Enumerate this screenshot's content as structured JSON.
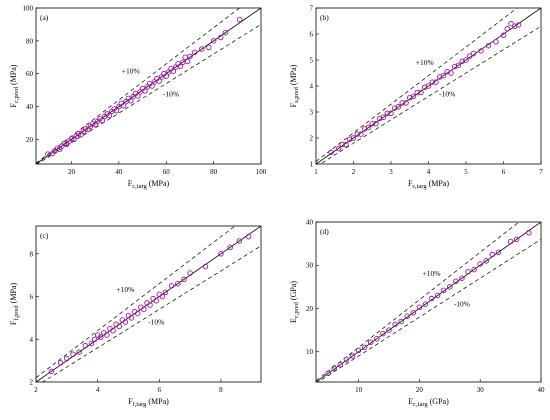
{
  "style": {
    "marker_color": "#a0179e"
  },
  "chart_data": [
    {
      "type": "scatter",
      "panel": "(a)",
      "xlabel_main": "F",
      "xlabel_sub": "c,targ",
      "xlabel_unit": " (MPa)",
      "ylabel_main": "F",
      "ylabel_sub": "c,pred",
      "ylabel_unit": " (MPa)",
      "xlim": [
        5,
        100
      ],
      "ylim": [
        5,
        100
      ],
      "xticks": [
        20,
        40,
        60,
        80,
        100
      ],
      "yticks": [
        20,
        40,
        60,
        80,
        100
      ],
      "band_upper_label": "+10%",
      "band_lower_label": "-10%",
      "band_upper_pos": [
        45,
        60
      ],
      "band_lower_pos": [
        62,
        46
      ],
      "identity_line": true,
      "band_pct": 10,
      "points": [
        [
          10,
          11
        ],
        [
          12,
          11.5
        ],
        [
          13,
          13
        ],
        [
          14,
          14.5
        ],
        [
          15,
          14
        ],
        [
          16,
          16
        ],
        [
          17,
          17.5
        ],
        [
          18,
          17
        ],
        [
          19,
          19
        ],
        [
          20,
          20.5
        ],
        [
          21,
          20
        ],
        [
          22,
          22
        ],
        [
          23,
          23.5
        ],
        [
          24,
          23
        ],
        [
          25,
          25
        ],
        [
          26,
          26.5
        ],
        [
          27,
          26
        ],
        [
          28,
          28
        ],
        [
          29,
          29.5
        ],
        [
          30,
          29
        ],
        [
          31,
          31
        ],
        [
          32,
          32.5
        ],
        [
          33,
          31.5
        ],
        [
          34,
          34
        ],
        [
          35,
          35.5
        ],
        [
          36,
          34.5
        ],
        [
          37,
          37
        ],
        [
          38,
          38.5
        ],
        [
          39,
          37.5
        ],
        [
          40,
          40
        ],
        [
          41,
          42
        ],
        [
          42,
          40.5
        ],
        [
          43,
          43
        ],
        [
          44,
          45
        ],
        [
          45,
          43.5
        ],
        [
          46,
          46
        ],
        [
          47,
          48
        ],
        [
          48,
          46.5
        ],
        [
          49,
          49
        ],
        [
          50,
          51
        ],
        [
          51,
          49.5
        ],
        [
          52,
          52
        ],
        [
          53,
          54
        ],
        [
          54,
          52.5
        ],
        [
          55,
          55
        ],
        [
          56,
          57
        ],
        [
          57,
          55.5
        ],
        [
          58,
          58
        ],
        [
          59,
          60
        ],
        [
          60,
          58.5
        ],
        [
          61,
          61
        ],
        [
          62,
          63
        ],
        [
          63,
          61.5
        ],
        [
          64,
          64
        ],
        [
          65,
          66
        ],
        [
          66,
          64.5
        ],
        [
          67,
          67
        ],
        [
          68,
          70
        ],
        [
          69,
          67.5
        ],
        [
          70,
          70.5
        ],
        [
          72,
          73
        ],
        [
          75,
          75
        ],
        [
          78,
          76
        ],
        [
          80,
          80
        ],
        [
          83,
          82
        ],
        [
          85,
          85
        ],
        [
          91,
          93
        ]
      ]
    },
    {
      "type": "scatter",
      "panel": "(b)",
      "xlabel_main": "F",
      "xlabel_sub": "s,targ",
      "xlabel_unit": " (MPa)",
      "ylabel_main": "F",
      "ylabel_sub": "s,pred",
      "ylabel_unit": " (MPa)",
      "xlim": [
        1,
        7
      ],
      "ylim": [
        1,
        7
      ],
      "xticks": [
        1,
        2,
        3,
        4,
        5,
        6,
        7
      ],
      "yticks": [
        1,
        2,
        3,
        4,
        5,
        6,
        7
      ],
      "band_upper_label": "+10%",
      "band_lower_label": "-10%",
      "band_upper_pos": [
        3.9,
        4.8
      ],
      "band_lower_pos": [
        4.5,
        3.6
      ],
      "identity_line": true,
      "band_pct": 10,
      "points": [
        [
          1.4,
          1.45
        ],
        [
          1.6,
          1.6
        ],
        [
          1.7,
          1.75
        ],
        [
          1.8,
          1.75
        ],
        [
          1.9,
          1.95
        ],
        [
          2.0,
          2.0
        ],
        [
          2.1,
          2.15
        ],
        [
          2.2,
          2.15
        ],
        [
          2.3,
          2.35
        ],
        [
          2.4,
          2.4
        ],
        [
          2.5,
          2.55
        ],
        [
          2.6,
          2.55
        ],
        [
          2.7,
          2.75
        ],
        [
          2.8,
          2.8
        ],
        [
          2.9,
          2.95
        ],
        [
          3.0,
          2.95
        ],
        [
          3.1,
          3.15
        ],
        [
          3.2,
          3.2
        ],
        [
          3.3,
          3.35
        ],
        [
          3.4,
          3.35
        ],
        [
          3.5,
          3.55
        ],
        [
          3.6,
          3.6
        ],
        [
          3.7,
          3.75
        ],
        [
          3.8,
          3.75
        ],
        [
          3.9,
          3.95
        ],
        [
          4.0,
          4.0
        ],
        [
          4.1,
          4.15
        ],
        [
          4.2,
          4.15
        ],
        [
          4.3,
          4.35
        ],
        [
          4.4,
          4.4
        ],
        [
          4.5,
          4.55
        ],
        [
          4.6,
          4.5
        ],
        [
          4.7,
          4.75
        ],
        [
          4.8,
          4.8
        ],
        [
          4.9,
          4.95
        ],
        [
          5.0,
          5.0
        ],
        [
          5.1,
          5.15
        ],
        [
          5.2,
          5.25
        ],
        [
          5.4,
          5.35
        ],
        [
          5.6,
          5.55
        ],
        [
          5.8,
          5.7
        ],
        [
          6.0,
          5.95
        ],
        [
          6.1,
          6.2
        ],
        [
          6.2,
          6.4
        ],
        [
          6.3,
          6.3
        ],
        [
          6.4,
          6.35
        ]
      ]
    },
    {
      "type": "scatter",
      "panel": "(c)",
      "xlabel_main": "F",
      "xlabel_sub": "f,targ",
      "xlabel_unit": " (MPa)",
      "ylabel_main": "F",
      "ylabel_sub": "f,pred",
      "ylabel_unit": " (MPa)",
      "xlim": [
        2,
        9.3
      ],
      "ylim": [
        2,
        9.3
      ],
      "xticks": [
        2,
        4,
        6,
        8
      ],
      "yticks": [
        2,
        4,
        6,
        8
      ],
      "band_upper_label": "+10%",
      "band_lower_label": "-10%",
      "band_upper_pos": [
        4.9,
        6.2
      ],
      "band_lower_pos": [
        5.9,
        4.7
      ],
      "identity_line": true,
      "band_pct": 10,
      "points": [
        [
          2.5,
          2.5
        ],
        [
          2.8,
          2.9
        ],
        [
          3.0,
          3.1
        ],
        [
          3.2,
          3.3
        ],
        [
          3.4,
          3.4
        ],
        [
          3.6,
          3.7
        ],
        [
          3.8,
          3.8
        ],
        [
          3.9,
          4.0
        ],
        [
          4.0,
          4.2
        ],
        [
          4.1,
          4.1
        ],
        [
          4.2,
          4.3
        ],
        [
          4.3,
          4.2
        ],
        [
          4.4,
          4.5
        ],
        [
          4.5,
          4.4
        ],
        [
          4.6,
          4.7
        ],
        [
          4.7,
          4.6
        ],
        [
          4.8,
          4.9
        ],
        [
          4.9,
          4.8
        ],
        [
          5.0,
          5.1
        ],
        [
          5.1,
          5.0
        ],
        [
          5.2,
          5.3
        ],
        [
          5.3,
          5.2
        ],
        [
          5.4,
          5.5
        ],
        [
          5.5,
          5.4
        ],
        [
          5.6,
          5.7
        ],
        [
          5.7,
          5.6
        ],
        [
          5.8,
          5.9
        ],
        [
          5.9,
          5.8
        ],
        [
          6.0,
          6.1
        ],
        [
          6.1,
          6.0
        ],
        [
          6.2,
          6.2
        ],
        [
          6.4,
          6.5
        ],
        [
          6.6,
          6.6
        ],
        [
          6.8,
          6.8
        ],
        [
          7.0,
          7.1
        ],
        [
          7.5,
          7.4
        ],
        [
          8.0,
          8.0
        ],
        [
          8.3,
          8.3
        ],
        [
          8.6,
          8.6
        ],
        [
          8.9,
          8.8
        ]
      ]
    },
    {
      "type": "scatter",
      "panel": "(d)",
      "xlabel_main": "E",
      "xlabel_sub": "c,targ",
      "xlabel_unit": " (GPa)",
      "ylabel_main": "E",
      "ylabel_sub": "c,pred",
      "ylabel_unit": " (GPa)",
      "xlim": [
        3,
        40
      ],
      "ylim": [
        3,
        40
      ],
      "xticks": [
        10,
        20,
        30,
        40
      ],
      "yticks": [
        10,
        20,
        30,
        40
      ],
      "band_upper_label": "+10%",
      "band_lower_label": "-10%",
      "band_upper_pos": [
        22,
        27.5
      ],
      "band_lower_pos": [
        27,
        20.5
      ],
      "identity_line": true,
      "band_pct": 10,
      "points": [
        [
          5,
          5
        ],
        [
          6,
          6.2
        ],
        [
          7,
          7
        ],
        [
          8,
          8.2
        ],
        [
          9,
          9
        ],
        [
          10,
          10.3
        ],
        [
          11,
          11
        ],
        [
          12,
          12.2
        ],
        [
          13,
          13
        ],
        [
          14,
          14.2
        ],
        [
          15,
          15
        ],
        [
          16,
          16.3
        ],
        [
          17,
          17
        ],
        [
          18,
          18.2
        ],
        [
          19,
          19
        ],
        [
          20,
          20.3
        ],
        [
          21,
          21
        ],
        [
          22,
          22.3
        ],
        [
          23,
          23
        ],
        [
          24,
          24.2
        ],
        [
          25,
          25
        ],
        [
          26,
          26.3
        ],
        [
          27,
          27
        ],
        [
          28,
          28.5
        ],
        [
          29,
          29
        ],
        [
          30,
          30.3
        ],
        [
          31,
          31
        ],
        [
          32,
          32.5
        ],
        [
          33,
          33
        ],
        [
          35,
          35.5
        ],
        [
          36,
          36
        ],
        [
          38,
          37.5
        ]
      ]
    }
  ]
}
